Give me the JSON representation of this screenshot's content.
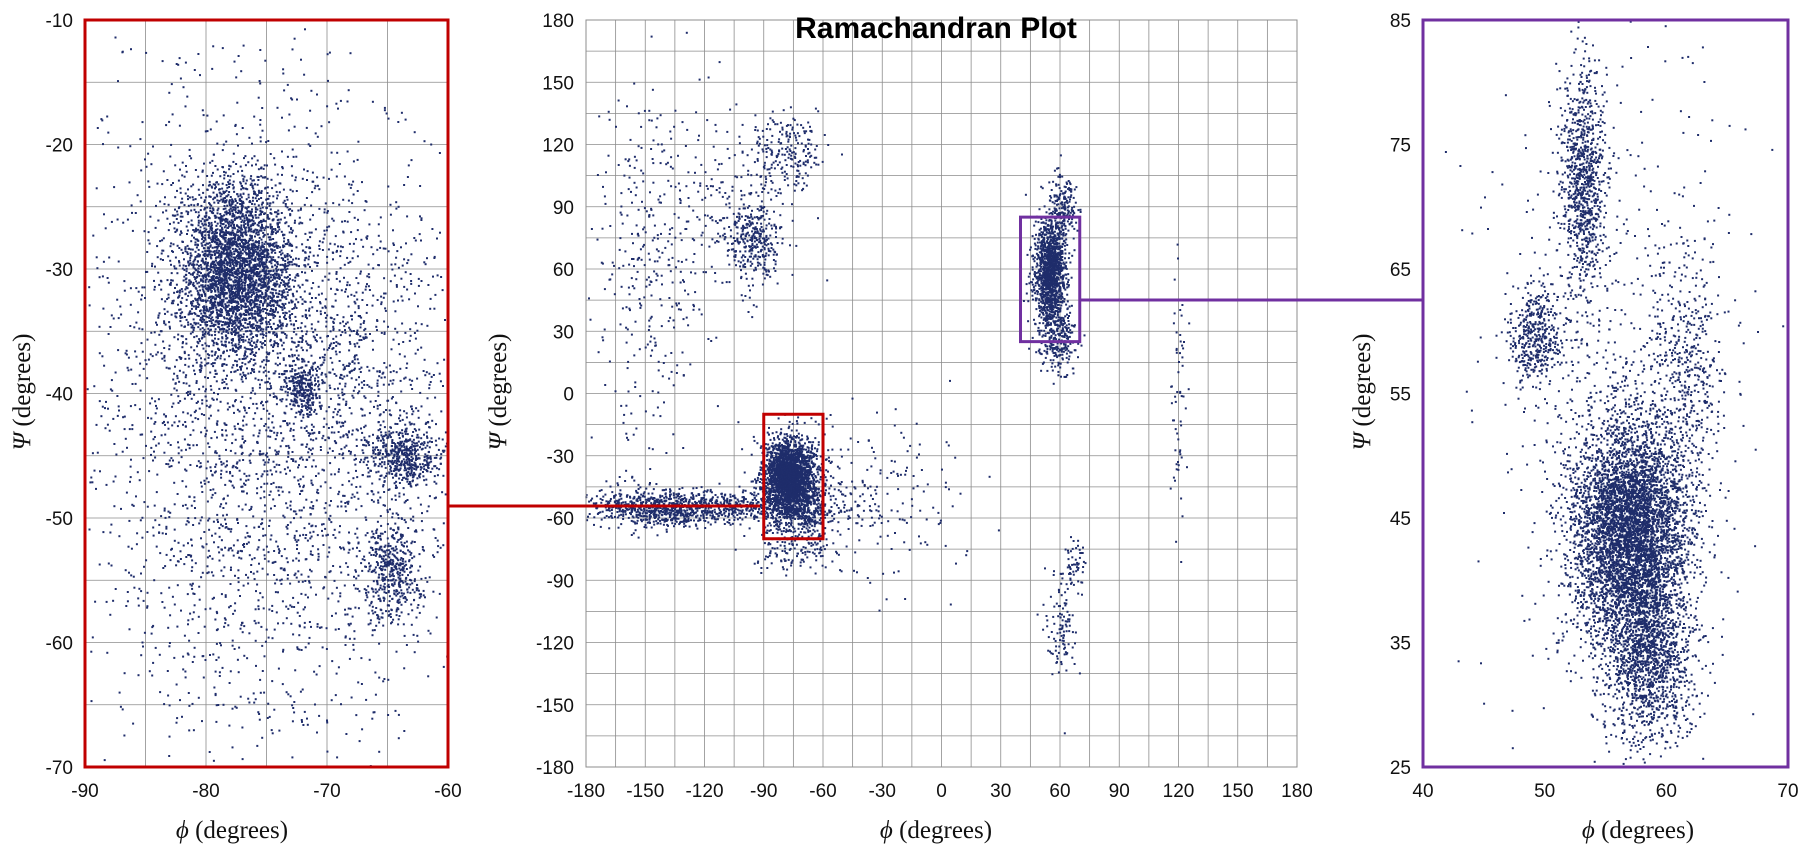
{
  "colors": {
    "points": "#1f2d6b",
    "grid": "#8c8c8c",
    "alpha_zoom_box": "#c00000",
    "left_helix_zoom_box": "#7030a0"
  },
  "chart_data": [
    {
      "type": "scatter",
      "role": "main",
      "title": "Ramachandran Plot",
      "xlabel": "ϕ (degrees)",
      "ylabel": "Ψ (degrees)",
      "xlim": [
        -180,
        180
      ],
      "ylim": [
        -180,
        180
      ],
      "x_ticks": [
        "-180",
        "-150",
        "-120",
        "-90",
        "-60",
        "-30",
        "0",
        "30",
        "60",
        "90",
        "120",
        "150",
        "180"
      ],
      "y_ticks": [
        "180",
        "150",
        "120",
        "90",
        "60",
        "30",
        "0",
        "-30",
        "-60",
        "-90",
        "-120",
        "-150",
        "-180"
      ],
      "grid": true,
      "zoom_boxes": [
        {
          "color": "#c00000",
          "x": [
            -90,
            -60
          ],
          "y": [
            -70,
            -10
          ]
        },
        {
          "color": "#7030a0",
          "x": [
            40,
            70
          ],
          "y": [
            25,
            85
          ]
        }
      ],
      "clusters": [
        {
          "x": -77,
          "y": -40,
          "sx": 6,
          "sy": 9,
          "n": 2400
        },
        {
          "x": -72,
          "y": -52,
          "sx": 9,
          "sy": 10,
          "n": 500
        },
        {
          "x": -120,
          "y": -55,
          "sx": 30,
          "sy": 4,
          "n": 900
        },
        {
          "x": -150,
          "y": -55,
          "sx": 12,
          "sy": 6,
          "n": 250
        },
        {
          "x": -35,
          "y": -50,
          "sx": 25,
          "sy": 20,
          "n": 200
        },
        {
          "x": -75,
          "y": -75,
          "sx": 10,
          "sy": 6,
          "n": 120
        },
        {
          "x": -95,
          "y": 75,
          "sx": 7,
          "sy": 10,
          "n": 330
        },
        {
          "x": -80,
          "y": 115,
          "sx": 10,
          "sy": 10,
          "n": 220
        },
        {
          "x": -130,
          "y": 90,
          "sx": 25,
          "sy": 30,
          "n": 300
        },
        {
          "x": -150,
          "y": 40,
          "sx": 12,
          "sy": 40,
          "n": 160
        },
        {
          "x": 55,
          "y": 58,
          "sx": 4,
          "sy": 14,
          "n": 1400
        },
        {
          "x": 60,
          "y": 25,
          "sx": 4,
          "sy": 8,
          "n": 200
        },
        {
          "x": 62,
          "y": 90,
          "sx": 3,
          "sy": 8,
          "n": 150
        },
        {
          "x": 60,
          "y": -110,
          "sx": 4,
          "sy": 12,
          "n": 110
        },
        {
          "x": 68,
          "y": -82,
          "sx": 3,
          "sy": 5,
          "n": 50
        },
        {
          "x": 120,
          "y": 5,
          "sx": 2,
          "sy": 40,
          "n": 60
        }
      ]
    },
    {
      "type": "scatter",
      "role": "zoom-alpha-helix",
      "xlabel": "ϕ (degrees)",
      "ylabel": "Ψ (degrees)",
      "xlim": [
        -90,
        -60
      ],
      "ylim": [
        -70,
        -10
      ],
      "x_ticks": [
        "-90",
        "-80",
        "-70",
        "-60"
      ],
      "y_ticks": [
        "-10",
        "-20",
        "-30",
        "-40",
        "-50",
        "-60",
        "-70"
      ],
      "grid": true,
      "frame_color": "#c00000",
      "clusters": [
        {
          "x": -77.5,
          "y": -30,
          "sx": 2.3,
          "sy": 3.5,
          "n": 3200
        },
        {
          "x": -72,
          "y": -39.5,
          "sx": 0.8,
          "sy": 1.2,
          "n": 260
        },
        {
          "x": -63.5,
          "y": -45,
          "sx": 1.5,
          "sy": 1.3,
          "n": 520
        },
        {
          "x": -64.5,
          "y": -54.5,
          "sx": 1.2,
          "sy": 2.0,
          "n": 450
        },
        {
          "x": -75,
          "y": -42,
          "sx": 8,
          "sy": 13,
          "n": 3000
        },
        {
          "x": -70,
          "y": -36,
          "sx": 5,
          "sy": 5,
          "n": 400
        }
      ]
    },
    {
      "type": "scatter",
      "role": "zoom-left-handed-helix",
      "xlabel": "ϕ (degrees)",
      "ylabel": "Ψ (degrees)",
      "xlim": [
        40,
        70
      ],
      "ylim": [
        25,
        85
      ],
      "x_ticks": [
        "40",
        "50",
        "60",
        "70"
      ],
      "y_ticks": [
        "85",
        "75",
        "65",
        "55",
        "45",
        "35",
        "25"
      ],
      "grid": false,
      "frame_color": "#7030a0",
      "clusters": [
        {
          "x": 57,
          "y": 44,
          "sx": 2.4,
          "sy": 4.5,
          "n": 5000
        },
        {
          "x": 58.5,
          "y": 34,
          "sx": 1.8,
          "sy": 3.5,
          "n": 1400
        },
        {
          "x": 53.2,
          "y": 72,
          "sx": 0.9,
          "sy": 4.5,
          "n": 900
        },
        {
          "x": 49.2,
          "y": 59.5,
          "sx": 1.0,
          "sy": 2.0,
          "n": 400
        },
        {
          "x": 61.5,
          "y": 57,
          "sx": 1.5,
          "sy": 5,
          "n": 450
        },
        {
          "x": 56,
          "y": 55,
          "sx": 5,
          "sy": 14,
          "n": 700
        }
      ]
    }
  ]
}
